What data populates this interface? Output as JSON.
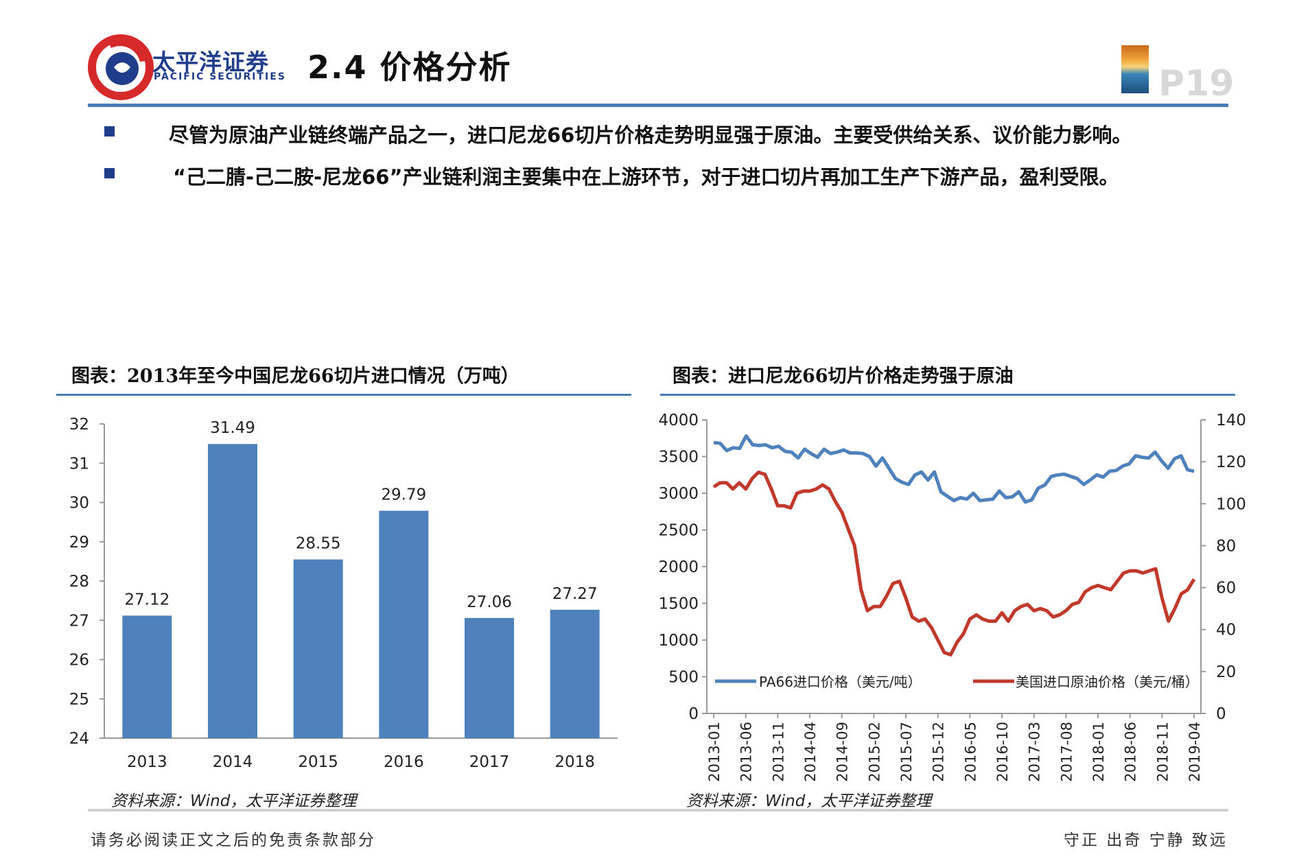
{
  "header": {
    "logo_cn": "太平洋证券",
    "logo_en": "PACIFIC SECURITIES",
    "title": "2.4 价格分析",
    "page": "P19"
  },
  "bullets": [
    "尽管为原油产业链终端产品之一，进口尼龙66切片价格走势明显强于原油。主要受供给关系、议价能力影响。",
    "“己二腈-己二胺-尼龙66”产业链利润主要集中在上游环节，对于进口切片再加工生产下游产品，盈利受限。"
  ],
  "chart1_caption": "图表：2013年至今中国尼龙66切片进口情况（万吨）",
  "chart2_caption": "图表：进口尼龙66切片价格走势强于原油",
  "source1": "资料来源：Wind，太平洋证券整理",
  "source2": "资料来源：Wind，太平洋证券整理",
  "footer": {
    "left": "请务必阅读正文之后的免责条款部分",
    "right": "守正 出奇 宁静 致远"
  },
  "colors": {
    "bar": "#4f81bd",
    "pa66": "#4f81bd",
    "crude": "#c0392b",
    "accent": "#1f3d8a"
  },
  "chart_data": [
    {
      "type": "bar",
      "categories": [
        "2013",
        "2014",
        "2015",
        "2016",
        "2017",
        "2018"
      ],
      "values": [
        27.12,
        31.49,
        28.55,
        29.79,
        27.06,
        27.27
      ],
      "data_labels": [
        "27.12",
        "31.49",
        "28.55",
        "29.79",
        "27.06",
        "27.27"
      ],
      "ylim": [
        24,
        32
      ],
      "yticks": [
        "24",
        "25",
        "26",
        "27",
        "28",
        "29",
        "30",
        "31",
        "32"
      ],
      "grid": false
    },
    {
      "type": "line",
      "x_ticks": [
        "2013-01",
        "2013-06",
        "2013-11",
        "2014-04",
        "2014-09",
        "2015-02",
        "2015-07",
        "2015-12",
        "2016-05",
        "2016-10",
        "2017-03",
        "2017-08",
        "2018-01",
        "2018-06",
        "2018-11",
        "2019-04"
      ],
      "left_ylim": [
        0,
        4000
      ],
      "left_yticks": [
        "0",
        "500",
        "1000",
        "1500",
        "2000",
        "2500",
        "3000",
        "3500",
        "4000"
      ],
      "right_ylim": [
        0,
        140
      ],
      "right_yticks": [
        "0",
        "20",
        "40",
        "60",
        "80",
        "100",
        "120",
        "140"
      ],
      "legend_position": "bottom",
      "series": [
        {
          "name": "PA66进口价格（美元/吨）",
          "axis": "left",
          "values": [
            3690,
            3680,
            3580,
            3620,
            3610,
            3780,
            3660,
            3650,
            3660,
            3620,
            3640,
            3570,
            3560,
            3480,
            3600,
            3540,
            3490,
            3600,
            3540,
            3560,
            3590,
            3550,
            3550,
            3540,
            3500,
            3370,
            3480,
            3340,
            3200,
            3150,
            3120,
            3250,
            3290,
            3180,
            3290,
            3020,
            2960,
            2900,
            2940,
            2920,
            3000,
            2900,
            2910,
            2920,
            3030,
            2940,
            2950,
            3020,
            2880,
            2910,
            3070,
            3110,
            3230,
            3250,
            3260,
            3230,
            3200,
            3120,
            3180,
            3250,
            3220,
            3300,
            3310,
            3370,
            3400,
            3510,
            3490,
            3480,
            3560,
            3440,
            3340,
            3470,
            3510,
            3320,
            3300
          ]
        },
        {
          "name": "美国进口原油价格（美元/桶）",
          "axis": "right",
          "values": [
            108,
            110,
            110,
            107,
            110,
            107,
            112,
            115,
            114,
            107,
            99,
            99,
            98,
            105,
            106,
            106,
            107,
            109,
            107,
            101,
            96,
            88,
            80,
            59,
            49,
            51,
            51,
            56,
            62,
            63,
            55,
            46,
            44,
            45,
            41,
            35,
            29,
            28,
            34,
            38,
            45,
            47,
            45,
            44,
            44,
            48,
            44,
            49,
            51,
            52,
            49,
            50,
            49,
            46,
            47,
            49,
            52,
            53,
            58,
            60,
            61,
            60,
            59,
            63,
            67,
            68,
            68,
            67,
            68,
            69,
            55,
            44,
            50,
            57,
            59,
            64
          ]
        }
      ]
    }
  ]
}
